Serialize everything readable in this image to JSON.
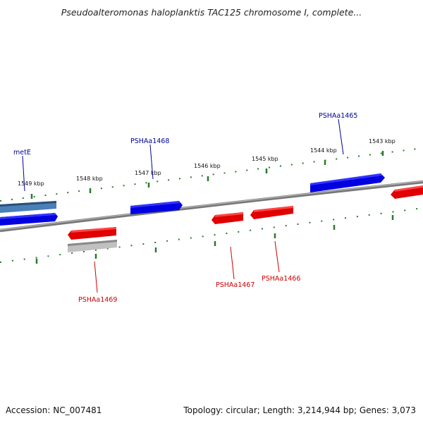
{
  "title": "Pseudoalteromonas haloplanktis TAC125 chromosome I, complete...",
  "footer": {
    "accession": "Accession: NC_007481",
    "summary": "Topology: circular; Length: 3,214,944 bp; Genes: 3,073"
  },
  "colors": {
    "forward_gene": "#0000e0",
    "reverse_gene": "#e00000",
    "forward_label": "#000099",
    "reverse_label": "#cc0000",
    "tick": "#2a7a2a",
    "backbone": "#777777"
  },
  "scale_labels": [
    "1549 kbp",
    "1548 kbp",
    "1547 kbp",
    "1546 kbp",
    "1545 kbp",
    "1544 kbp",
    "1543 kbp"
  ],
  "gene_labels": {
    "metE": "metE",
    "pshaa1468": "PSHAa1468",
    "pshaa1465": "PSHAa1465",
    "pshaa1469": "PSHAa1469",
    "pshaa1467": "PSHAa1467",
    "pshaa1466": "PSHAa1466"
  }
}
